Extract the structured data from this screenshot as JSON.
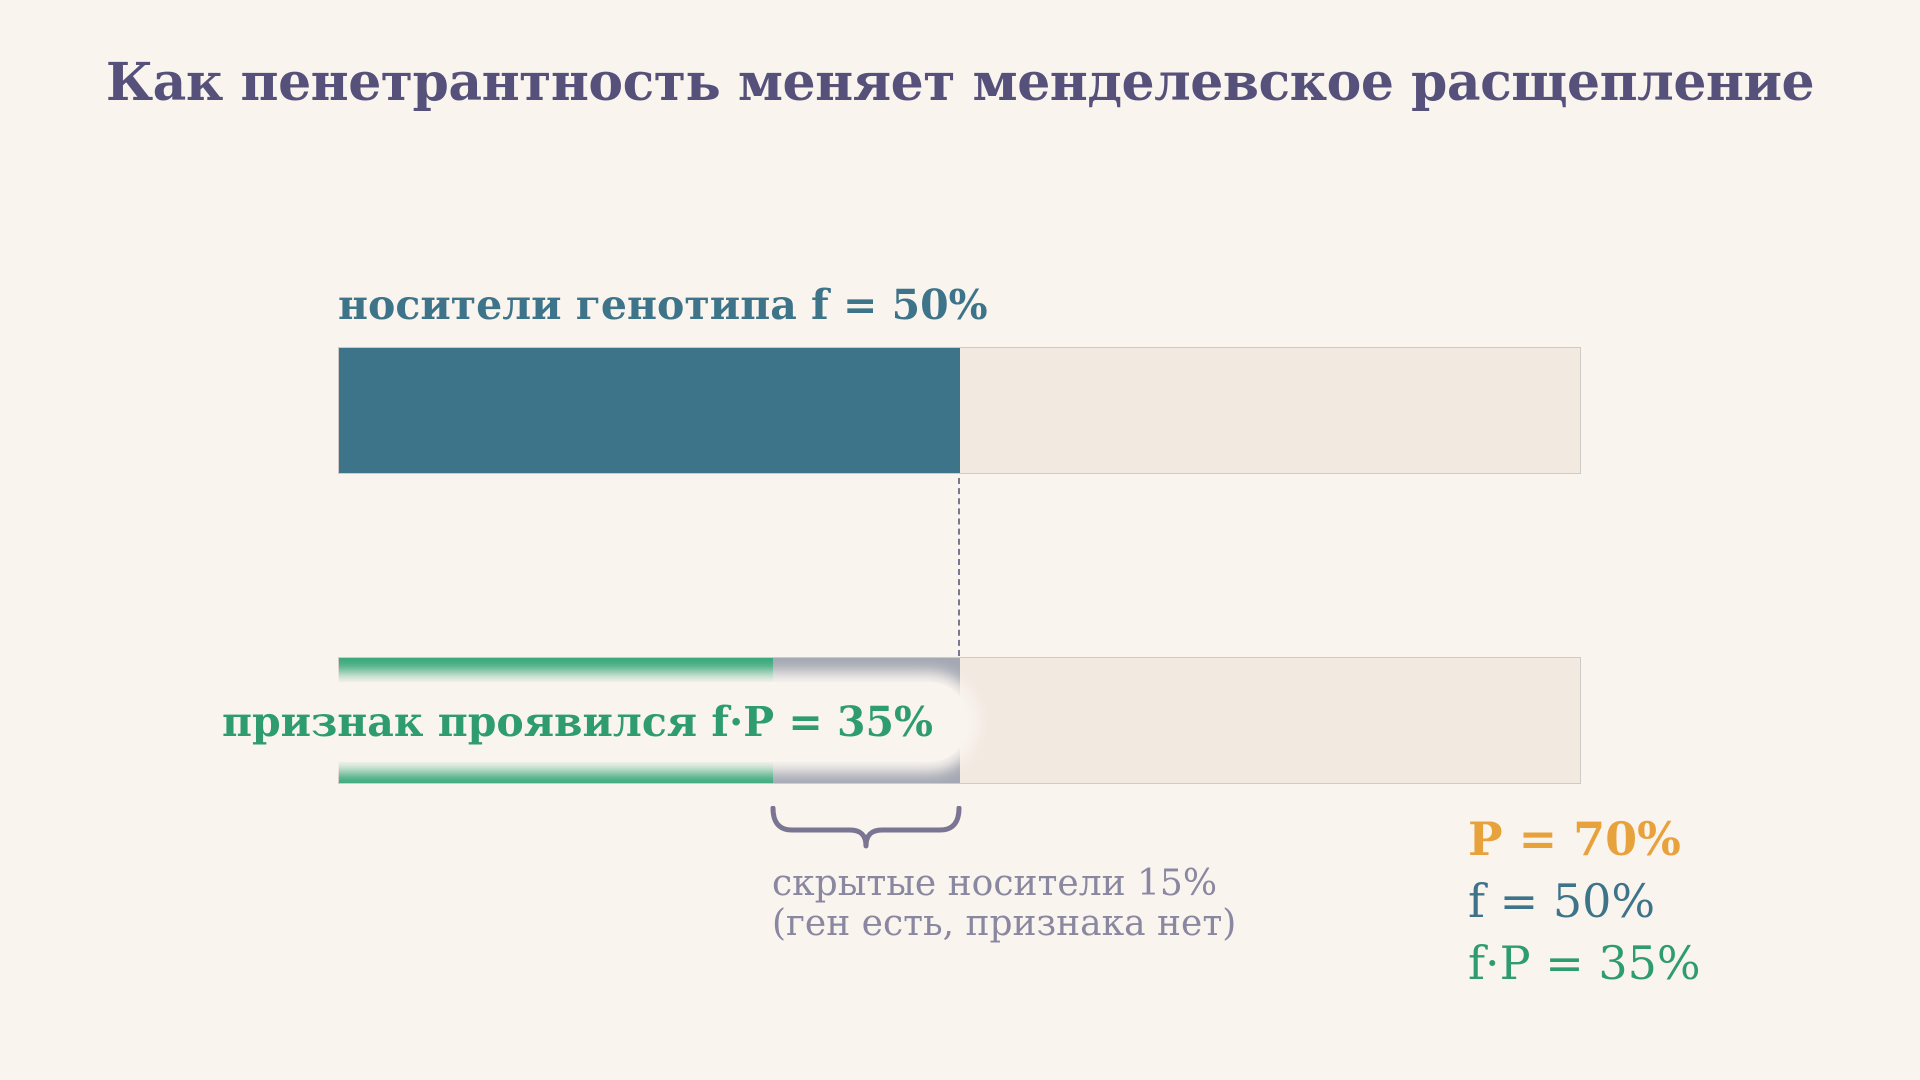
{
  "title": "Как пенетрантность меняет менделевское расщепление",
  "carriers": {
    "label": "носители генотипа  f = 50%",
    "fraction": 0.5
  },
  "expressed": {
    "label": "признак проявился  f·P = 35%",
    "fraction": 0.35
  },
  "hidden_carriers": {
    "line1": "скрытые носители  15%",
    "line2": "(ген есть, признака нет)",
    "fraction": 0.15
  },
  "legend": {
    "p": "P = 70%",
    "f": "f = 50%",
    "fp": "f·P = 35%"
  },
  "colors": {
    "carrier": "#3d7489",
    "expressed": "#38a87a",
    "hidden": "#a4a8b3",
    "penetrance": "#e8a23c",
    "title": "#56517a"
  }
}
